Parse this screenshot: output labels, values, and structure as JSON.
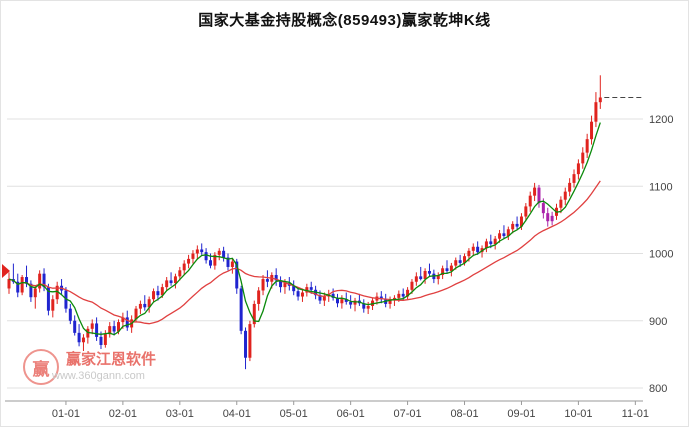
{
  "title": "国家大基金持股概念(859493)赢家乾坤K线",
  "watermark": {
    "logo_char": "赢",
    "brand": "赢家江恩软件",
    "url": "www.360gann.com"
  },
  "colors": {
    "up": "#e0231e",
    "down": "#1f24cf",
    "special": "#aa22aa",
    "ma_fast": "#0b8a0b",
    "ma_slow": "#e04040",
    "grid": "#e0e0e0",
    "axis": "#9a9a9a",
    "label": "#444444",
    "price_line": "#444444"
  },
  "chart_data": {
    "type": "candlestick",
    "title": "国家大基金持股概念(859493)赢家乾坤K线",
    "y_axis_side": "right",
    "grid": true,
    "y_ticks": [
      800,
      900,
      1000,
      1100,
      1200
    ],
    "ylim": [
      790,
      1300
    ],
    "x_tick_labels": [
      "01-01",
      "02-01",
      "03-01",
      "04-01",
      "05-01",
      "06-01",
      "07-01",
      "08-01",
      "09-01",
      "10-01",
      "11-01"
    ],
    "x_tick_indices": [
      13,
      26,
      39,
      52,
      65,
      78,
      91,
      104,
      117,
      130,
      143
    ],
    "ma_fast_period": 5,
    "ma_slow_period": 20,
    "last_price_line": 1232,
    "special_color_indices": [
      121,
      122,
      123,
      124
    ],
    "candles": [
      [
        948,
        972,
        940,
        962
      ],
      [
        962,
        985,
        955,
        958
      ],
      [
        958,
        970,
        935,
        942
      ],
      [
        942,
        968,
        938,
        965
      ],
      [
        965,
        982,
        950,
        955
      ],
      [
        955,
        960,
        928,
        935
      ],
      [
        935,
        952,
        918,
        948
      ],
      [
        948,
        975,
        942,
        970
      ],
      [
        970,
        978,
        944,
        950
      ],
      [
        950,
        955,
        908,
        915
      ],
      [
        915,
        938,
        905,
        932
      ],
      [
        932,
        958,
        925,
        952
      ],
      [
        952,
        962,
        938,
        945
      ],
      [
        945,
        950,
        912,
        918
      ],
      [
        918,
        925,
        895,
        900
      ],
      [
        900,
        908,
        878,
        882
      ],
      [
        882,
        895,
        862,
        868
      ],
      [
        868,
        880,
        855,
        875
      ],
      [
        875,
        892,
        866,
        888
      ],
      [
        888,
        902,
        880,
        896
      ],
      [
        896,
        905,
        870,
        876
      ],
      [
        876,
        884,
        858,
        864
      ],
      [
        864,
        886,
        860,
        880
      ],
      [
        880,
        898,
        875,
        892
      ],
      [
        892,
        900,
        878,
        884
      ],
      [
        884,
        902,
        880,
        898
      ],
      [
        898,
        912,
        888,
        905
      ],
      [
        905,
        915,
        885,
        890
      ],
      [
        890,
        908,
        882,
        902
      ],
      [
        902,
        922,
        898,
        918
      ],
      [
        918,
        930,
        910,
        925
      ],
      [
        925,
        938,
        915,
        920
      ],
      [
        920,
        936,
        912,
        932
      ],
      [
        932,
        948,
        928,
        944
      ],
      [
        944,
        952,
        930,
        938
      ],
      [
        938,
        955,
        934,
        950
      ],
      [
        950,
        965,
        945,
        960
      ],
      [
        960,
        972,
        952,
        956
      ],
      [
        956,
        970,
        948,
        966
      ],
      [
        966,
        980,
        960,
        975
      ],
      [
        975,
        990,
        968,
        985
      ],
      [
        985,
        998,
        978,
        992
      ],
      [
        992,
        1005,
        985,
        1000
      ],
      [
        1000,
        1012,
        992,
        1006
      ],
      [
        1006,
        1015,
        998,
        1002
      ],
      [
        1002,
        1008,
        985,
        990
      ],
      [
        990,
        1000,
        978,
        982
      ],
      [
        982,
        1002,
        976,
        998
      ],
      [
        998,
        1008,
        990,
        1004
      ],
      [
        1004,
        1010,
        988,
        994
      ],
      [
        994,
        1000,
        975,
        980
      ],
      [
        980,
        992,
        970,
        988
      ],
      [
        988,
        992,
        940,
        948
      ],
      [
        948,
        952,
        880,
        885
      ],
      [
        885,
        890,
        828,
        845
      ],
      [
        845,
        900,
        840,
        895
      ],
      [
        895,
        930,
        890,
        925
      ],
      [
        925,
        950,
        915,
        945
      ],
      [
        945,
        968,
        938,
        962
      ],
      [
        962,
        975,
        950,
        958
      ],
      [
        958,
        972,
        948,
        968
      ],
      [
        968,
        978,
        952,
        960
      ],
      [
        960,
        966,
        942,
        950
      ],
      [
        950,
        962,
        940,
        956
      ],
      [
        956,
        965,
        945,
        952
      ],
      [
        952,
        960,
        938,
        944
      ],
      [
        944,
        950,
        930,
        936
      ],
      [
        936,
        948,
        928,
        942
      ],
      [
        942,
        955,
        936,
        950
      ],
      [
        950,
        958,
        940,
        946
      ],
      [
        946,
        952,
        932,
        938
      ],
      [
        938,
        945,
        925,
        930
      ],
      [
        930,
        942,
        922,
        936
      ],
      [
        936,
        946,
        928,
        940
      ],
      [
        940,
        948,
        930,
        934
      ],
      [
        934,
        940,
        920,
        926
      ],
      [
        926,
        938,
        918,
        932
      ],
      [
        932,
        942,
        924,
        928
      ],
      [
        928,
        938,
        918,
        924
      ],
      [
        924,
        934,
        914,
        930
      ],
      [
        930,
        940,
        922,
        926
      ],
      [
        926,
        932,
        912,
        918
      ],
      [
        918,
        928,
        910,
        922
      ],
      [
        922,
        934,
        916,
        930
      ],
      [
        930,
        942,
        924,
        936
      ],
      [
        936,
        944,
        926,
        932
      ],
      [
        932,
        940,
        920,
        925
      ],
      [
        925,
        936,
        918,
        930
      ],
      [
        930,
        938,
        922,
        934
      ],
      [
        934,
        945,
        928,
        940
      ],
      [
        940,
        948,
        930,
        936
      ],
      [
        936,
        950,
        932,
        946
      ],
      [
        946,
        962,
        940,
        958
      ],
      [
        958,
        972,
        952,
        966
      ],
      [
        966,
        980,
        960,
        962
      ],
      [
        962,
        978,
        955,
        974
      ],
      [
        974,
        985,
        965,
        970
      ],
      [
        970,
        976,
        956,
        962
      ],
      [
        962,
        972,
        954,
        968
      ],
      [
        968,
        982,
        962,
        978
      ],
      [
        978,
        990,
        970,
        974
      ],
      [
        974,
        986,
        966,
        982
      ],
      [
        982,
        994,
        976,
        990
      ],
      [
        990,
        998,
        980,
        986
      ],
      [
        986,
        1000,
        982,
        996
      ],
      [
        996,
        1008,
        988,
        1004
      ],
      [
        1004,
        1015,
        996,
        1010
      ],
      [
        1010,
        1018,
        998,
        1002
      ],
      [
        1002,
        1012,
        994,
        1008
      ],
      [
        1008,
        1022,
        1002,
        1018
      ],
      [
        1018,
        1028,
        1008,
        1014
      ],
      [
        1014,
        1026,
        1006,
        1022
      ],
      [
        1022,
        1035,
        1016,
        1030
      ],
      [
        1030,
        1042,
        1022,
        1026
      ],
      [
        1026,
        1040,
        1020,
        1036
      ],
      [
        1036,
        1048,
        1030,
        1044
      ],
      [
        1044,
        1055,
        1036,
        1040
      ],
      [
        1040,
        1060,
        1035,
        1055
      ],
      [
        1055,
        1075,
        1048,
        1070
      ],
      [
        1070,
        1092,
        1062,
        1086
      ],
      [
        1086,
        1105,
        1078,
        1098
      ],
      [
        1098,
        1102,
        1068,
        1075
      ],
      [
        1075,
        1082,
        1052,
        1060
      ],
      [
        1060,
        1068,
        1040,
        1048
      ],
      [
        1048,
        1062,
        1042,
        1056
      ],
      [
        1056,
        1074,
        1050,
        1068
      ],
      [
        1068,
        1085,
        1060,
        1080
      ],
      [
        1080,
        1098,
        1072,
        1092
      ],
      [
        1092,
        1112,
        1085,
        1105
      ],
      [
        1105,
        1125,
        1098,
        1118
      ],
      [
        1118,
        1140,
        1110,
        1134
      ],
      [
        1134,
        1158,
        1126,
        1150
      ],
      [
        1150,
        1178,
        1142,
        1170
      ],
      [
        1170,
        1205,
        1162,
        1196
      ],
      [
        1196,
        1240,
        1188,
        1225
      ],
      [
        1225,
        1265,
        1215,
        1232
      ]
    ]
  }
}
